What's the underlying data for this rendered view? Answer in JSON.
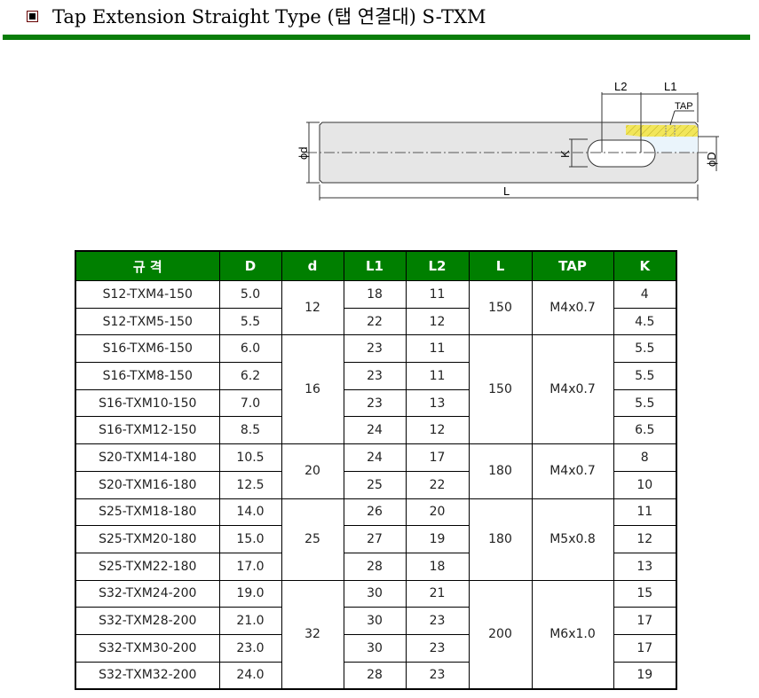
{
  "title": "Tap Extension Straight Type (탭 연결대) S-TXM",
  "colors": {
    "accent": "#007f00",
    "hatch": "#f2e65a",
    "body": "#e6e6e6",
    "bore": "#eaf4fb"
  },
  "diagram": {
    "labels": {
      "L": "L",
      "L1": "L1",
      "L2": "L2",
      "TAP": "TAP",
      "K": "K",
      "phi_d": "ϕd",
      "phi_D": "ϕD"
    }
  },
  "table": {
    "headers": [
      "규 격",
      "D",
      "d",
      "L1",
      "L2",
      "L",
      "TAP",
      "K"
    ],
    "groups": [
      {
        "d": "12",
        "L": "150",
        "TAP": "M4x0.7",
        "rows": [
          [
            "S12-TXM4-150",
            "5.0",
            "18",
            "11",
            "4"
          ],
          [
            "S12-TXM5-150",
            "5.5",
            "22",
            "12",
            "4.5"
          ]
        ]
      },
      {
        "d": "16",
        "L": "150",
        "TAP": "M4x0.7",
        "rows": [
          [
            "S16-TXM6-150",
            "6.0",
            "23",
            "11",
            "5.5"
          ],
          [
            "S16-TXM8-150",
            "6.2",
            "23",
            "11",
            "5.5"
          ],
          [
            "S16-TXM10-150",
            "7.0",
            "23",
            "13",
            "5.5"
          ],
          [
            "S16-TXM12-150",
            "8.5",
            "24",
            "12",
            "6.5"
          ]
        ]
      },
      {
        "d": "20",
        "L": "180",
        "TAP": "M4x0.7",
        "rows": [
          [
            "S20-TXM14-180",
            "10.5",
            "24",
            "17",
            "8"
          ],
          [
            "S20-TXM16-180",
            "12.5",
            "25",
            "22",
            "10"
          ]
        ]
      },
      {
        "d": "25",
        "L": "180",
        "TAP": "M5x0.8",
        "rows": [
          [
            "S25-TXM18-180",
            "14.0",
            "26",
            "20",
            "11"
          ],
          [
            "S25-TXM20-180",
            "15.0",
            "27",
            "19",
            "12"
          ],
          [
            "S25-TXM22-180",
            "17.0",
            "28",
            "18",
            "13"
          ]
        ]
      },
      {
        "d": "32",
        "L": "200",
        "TAP": "M6x1.0",
        "rows": [
          [
            "S32-TXM24-200",
            "19.0",
            "30",
            "21",
            "15"
          ],
          [
            "S32-TXM28-200",
            "21.0",
            "30",
            "23",
            "17"
          ],
          [
            "S32-TXM30-200",
            "23.0",
            "30",
            "23",
            "17"
          ],
          [
            "S32-TXM32-200",
            "24.0",
            "28",
            "23",
            "19"
          ]
        ]
      }
    ]
  }
}
